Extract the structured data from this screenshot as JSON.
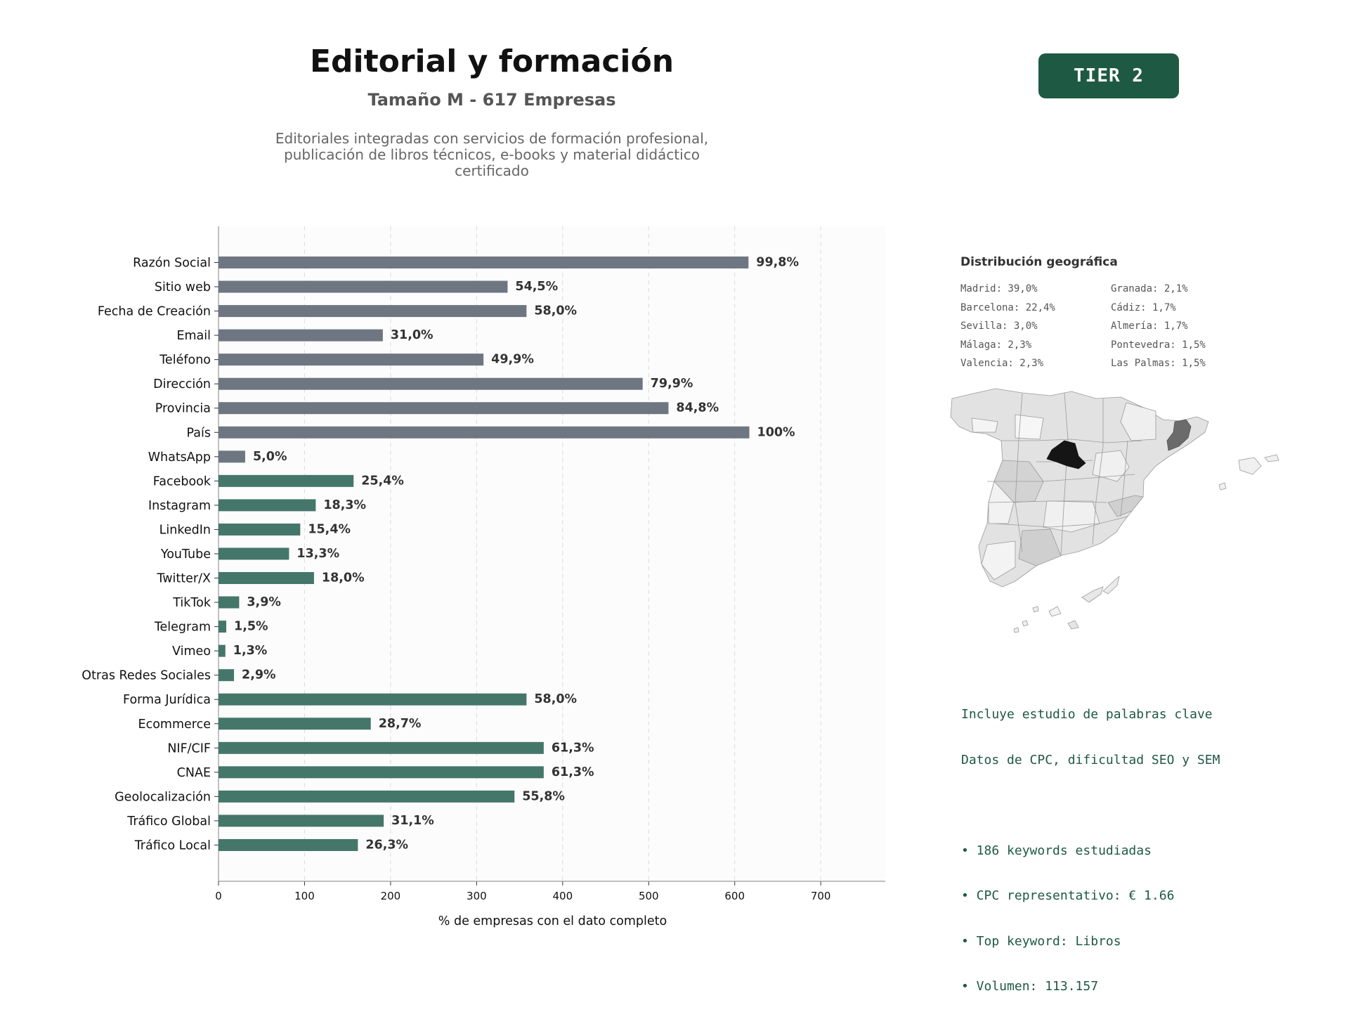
{
  "header": {
    "title": "Editorial y formación",
    "subtitle": "Tamaño M - 617 Empresas",
    "description": [
      "Editoriales integradas con servicios de formación profesional,",
      "publicación de libros técnicos, e-books y material didáctico",
      "certificado"
    ],
    "tier_label": "TIER 2"
  },
  "colors": {
    "tier_badge": "#1e5943",
    "bar_gray": "#6e7781",
    "bar_green": "#45766a",
    "kw_text": "#1e5943",
    "madrid": "#151515",
    "barcelona": "#6b6b6b"
  },
  "chart_data": {
    "type": "bar",
    "orientation": "horizontal",
    "xlabel": "% de empresas con el dato completo",
    "xlim": [
      0,
      775
    ],
    "xticks": [
      0,
      100,
      200,
      300,
      400,
      500,
      600,
      700
    ],
    "grid": "vertical dashed",
    "categories": [
      "Razón Social",
      "Sitio web",
      "Fecha de Creación",
      "Email",
      "Teléfono",
      "Dirección",
      "Provincia",
      "País",
      "WhatsApp",
      "Facebook",
      "Instagram",
      "LinkedIn",
      "YouTube",
      "Twitter/X",
      "TikTok",
      "Telegram",
      "Vimeo",
      "Otras Redes Sociales",
      "Forma Jurídica",
      "Ecommerce",
      "NIF/CIF",
      "CNAE",
      "Geolocalización",
      "Tráfico Global",
      "Tráfico Local"
    ],
    "values": [
      616,
      336,
      358,
      191,
      308,
      493,
      523,
      617,
      31,
      157,
      113,
      95,
      82,
      111,
      24,
      9,
      8,
      18,
      358,
      177,
      378,
      378,
      344,
      192,
      162
    ],
    "labels": [
      "99,8%",
      "54,5%",
      "58,0%",
      "31,0%",
      "49,9%",
      "79,9%",
      "84,8%",
      "100%",
      "5,0%",
      "25,4%",
      "18,3%",
      "15,4%",
      "13,3%",
      "18,0%",
      "3,9%",
      "1,5%",
      "1,3%",
      "2,9%",
      "58,0%",
      "28,7%",
      "61,3%",
      "61,3%",
      "55,8%",
      "31,1%",
      "26,3%"
    ],
    "bar_groups": [
      "gray",
      "gray",
      "gray",
      "gray",
      "gray",
      "gray",
      "gray",
      "gray",
      "gray",
      "green",
      "green",
      "green",
      "green",
      "green",
      "green",
      "green",
      "green",
      "green",
      "green",
      "green",
      "green",
      "green",
      "green",
      "green",
      "green"
    ]
  },
  "geo": {
    "title": "Distribución geográfica",
    "left_col": [
      "Madrid: 39,0%",
      "Barcelona: 22,4%",
      "Sevilla: 3,0%",
      "Málaga: 2,3%",
      "Valencia: 2,3%"
    ],
    "right_col": [
      "Granada: 2,1%",
      "Cádiz: 1,7%",
      "Almería: 1,7%",
      "Pontevedra: 1,5%",
      "Las Palmas: 1,5%"
    ]
  },
  "keywords": {
    "lines": [
      "Incluye estudio de palabras clave",
      "Datos de CPC, dificultad SEO y SEM",
      "",
      "• 186 keywords estudiadas",
      "• CPC representativo: € 1.66",
      "• Top keyword: Libros",
      "• Volumen: 113.157"
    ]
  }
}
